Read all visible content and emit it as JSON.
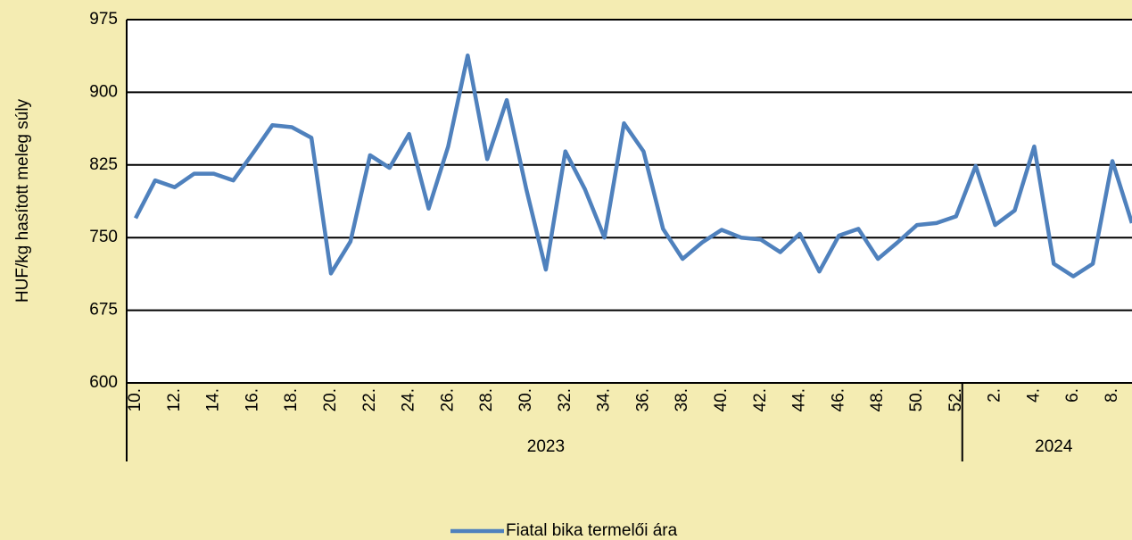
{
  "chart_data": {
    "type": "line",
    "ylabel": "HUF/kg hasított meleg súly",
    "category_groups": [
      {
        "name": "2023",
        "categories": [
          "10.",
          null,
          "12.",
          null,
          "14.",
          null,
          "16.",
          null,
          "18.",
          null,
          "20.",
          null,
          "22.",
          null,
          "24.",
          null,
          "26.",
          null,
          "28.",
          null,
          "30.",
          null,
          "32.",
          null,
          "34.",
          null,
          "36.",
          null,
          "38.",
          null,
          "40.",
          null,
          "42.",
          null,
          "44.",
          null,
          "46.",
          null,
          "48.",
          null,
          "50.",
          null,
          "52."
        ]
      },
      {
        "name": "2024",
        "categories": [
          null,
          "2.",
          null,
          "4.",
          null,
          "6.",
          null,
          "8.",
          null
        ]
      }
    ],
    "series": [
      {
        "name": "Fiatal bika termelői ára",
        "color": "#4f81bd",
        "values": [
          770,
          809,
          802,
          816,
          816,
          809,
          837,
          866,
          864,
          853,
          713,
          746,
          835,
          822,
          857,
          780,
          844,
          938,
          831,
          892,
          800,
          717,
          839,
          800,
          750,
          868,
          839,
          759,
          728,
          745,
          758,
          750,
          748,
          735,
          754,
          715,
          752,
          759,
          728,
          745,
          763,
          765,
          772,
          824,
          763,
          778,
          844,
          723,
          710,
          723,
          829,
          765
        ]
      }
    ],
    "ylim": [
      600,
      975
    ],
    "yticks": [
      600,
      675,
      750,
      825,
      900,
      975
    ],
    "grid": true,
    "legend": "bottom"
  }
}
